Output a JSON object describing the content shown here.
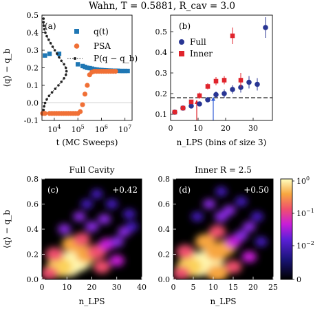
{
  "suptitle": "Wahn, T = 0.5881, R_cav = 3.0",
  "colors": {
    "blue": "#1f77b4",
    "orange": "#f07036",
    "full_blue": "#283593",
    "inner_red": "#e0242c",
    "dashed": "#222222",
    "arrow_red": "#e0242c",
    "arrow_blue": "#2f5bd6"
  },
  "chart_data": [
    {
      "panel": "(a)",
      "type": "scatter",
      "xscale": "log",
      "xlabel": "t (MC Sweeps)",
      "ylabel": "⟨q⟩ − q_b",
      "xlim": [
        3000,
        20000000
      ],
      "ylim": [
        -0.1,
        0.5
      ],
      "xticks": [
        {
          "value": 10000,
          "label": "10^4"
        },
        {
          "value": 100000,
          "label": "10^5"
        },
        {
          "value": 1000000,
          "label": "10^6"
        },
        {
          "value": 10000000,
          "label": "10^7"
        }
      ],
      "yticks": [
        -0.1,
        0.0,
        0.1,
        0.2,
        0.3,
        0.4,
        0.5
      ],
      "legend_position": "top-right",
      "series": [
        {
          "name": "q(t)",
          "marker": "square",
          "color": "#1f77b4",
          "x": [
            4000,
            6300,
            16000,
            100000,
            160000,
            200000,
            250000,
            320000,
            400000,
            500000,
            630000,
            800000,
            1000000,
            1300000,
            1600000,
            2000000,
            2500000,
            3200000,
            4000000,
            5000000,
            6300000,
            8000000,
            10000000,
            13000000
          ],
          "y": [
            0.27,
            0.28,
            0.28,
            0.22,
            0.21,
            0.205,
            0.2,
            0.198,
            0.195,
            0.192,
            0.19,
            0.188,
            0.187,
            0.186,
            0.185,
            0.184,
            0.184,
            0.183,
            0.183,
            0.183,
            0.182,
            0.182,
            0.182,
            0.182
          ]
        },
        {
          "name": "PSA",
          "marker": "circle",
          "color": "#f07036",
          "x": [
            3200,
            4000,
            6300,
            7900,
            10000,
            12500,
            15800,
            20000,
            25000,
            31600,
            39800,
            50100,
            63100,
            79400,
            100000,
            126000,
            158000,
            200000,
            251000,
            316000,
            398000,
            501000,
            631000,
            794000,
            1000000,
            1260000,
            1580000,
            2000000,
            2510000,
            3160000,
            3980000
          ],
          "y": [
            -0.06,
            -0.06,
            -0.06,
            -0.06,
            -0.06,
            -0.06,
            -0.06,
            -0.06,
            -0.06,
            -0.06,
            -0.06,
            -0.06,
            -0.06,
            -0.06,
            -0.06,
            -0.05,
            -0.01,
            0.05,
            0.1,
            0.16,
            0.175,
            0.18,
            0.18,
            0.18,
            0.18,
            0.18,
            0.18,
            0.18,
            0.18,
            0.18,
            0.18
          ]
        },
        {
          "name": "P(q − q_b)",
          "marker": "dot-line",
          "color": "#222222",
          "x": [
            3500,
            3500,
            3600,
            3800,
            4200,
            4800,
            5800,
            7000,
            8500,
            10500,
            13000,
            16000,
            20000,
            26000,
            31000,
            33000,
            31000,
            26000,
            20000,
            15000,
            11000,
            8000,
            6000,
            4800,
            4100,
            3700,
            3500
          ],
          "y": [
            0.48,
            0.46,
            0.44,
            0.42,
            0.4,
            0.38,
            0.36,
            0.34,
            0.32,
            0.3,
            0.28,
            0.26,
            0.24,
            0.22,
            0.2,
            0.18,
            0.16,
            0.14,
            0.12,
            0.1,
            0.08,
            0.06,
            0.04,
            0.02,
            0.0,
            -0.02,
            -0.04
          ]
        }
      ]
    },
    {
      "panel": "(b)",
      "type": "scatter",
      "xlabel": "n_LPS (bins of size 3)",
      "xlim": [
        0,
        37
      ],
      "ylim": [
        0.07,
        0.58
      ],
      "xticks": [
        0,
        10,
        20,
        30
      ],
      "yticks": [
        0.1,
        0.2,
        0.3,
        0.4,
        0.5
      ],
      "legend_position": "top-left",
      "hline": 0.18,
      "arrows": [
        {
          "x": 9.5,
          "color": "red"
        },
        {
          "x": 15.5,
          "color": "blue"
        }
      ],
      "series": [
        {
          "name": "Full",
          "marker": "circle",
          "color": "#283593",
          "x": [
            1.5,
            4.5,
            7.5,
            10.5,
            13.5,
            16.5,
            19.5,
            22.5,
            25.5,
            28.5,
            31.5,
            34.5
          ],
          "y": [
            0.11,
            0.13,
            0.14,
            0.15,
            0.17,
            0.195,
            0.2,
            0.22,
            0.23,
            0.255,
            0.245,
            0.52
          ],
          "yerr": [
            0.008,
            0.008,
            0.01,
            0.01,
            0.012,
            0.015,
            0.02,
            0.02,
            0.025,
            0.03,
            0.03,
            0.05
          ]
        },
        {
          "name": "Inner",
          "marker": "square",
          "color": "#e0242c",
          "x": [
            1.5,
            4.5,
            7.5,
            10.5,
            13.5,
            16.5,
            19.5,
            22.5,
            25.5
          ],
          "y": [
            0.11,
            0.13,
            0.16,
            0.19,
            0.235,
            0.26,
            0.265,
            0.48,
            0.265
          ],
          "yerr": [
            0.008,
            0.01,
            0.01,
            0.015,
            0.015,
            0.02,
            0.02,
            0.04,
            0.035
          ]
        }
      ]
    },
    {
      "panel": "(c)",
      "type": "heatmap",
      "title": "Full Cavity",
      "annotation": "+0.42",
      "xlabel": "n_LPS",
      "ylabel": "⟨q⟩ − q_b",
      "xlim": [
        0,
        40
      ],
      "ylim": [
        0,
        0.8
      ],
      "xticks": [
        0,
        10,
        20,
        30,
        40
      ],
      "yticks": [
        0.0,
        0.2,
        0.4,
        0.6,
        0.8
      ],
      "blobs": [
        {
          "x": 10,
          "y": 0.12,
          "w": 1.0
        },
        {
          "x": 14,
          "y": 0.15,
          "w": 0.85
        },
        {
          "x": 7,
          "y": 0.1,
          "w": 0.7
        },
        {
          "x": 18,
          "y": 0.2,
          "w": 0.55
        },
        {
          "x": 22,
          "y": 0.22,
          "w": 0.4
        },
        {
          "x": 12,
          "y": 0.28,
          "w": 0.45
        },
        {
          "x": 16,
          "y": 0.32,
          "w": 0.3
        },
        {
          "x": 26,
          "y": 0.28,
          "w": 0.25
        },
        {
          "x": 30,
          "y": 0.3,
          "w": 0.15
        },
        {
          "x": 33,
          "y": 0.38,
          "w": 0.12
        },
        {
          "x": 5,
          "y": 0.2,
          "w": 0.35
        },
        {
          "x": 20,
          "y": 0.42,
          "w": 0.15
        },
        {
          "x": 15,
          "y": 0.5,
          "w": 0.1
        },
        {
          "x": 25,
          "y": 0.48,
          "w": 0.12
        },
        {
          "x": 35,
          "y": 0.52,
          "w": 0.08
        },
        {
          "x": 28,
          "y": 0.6,
          "w": 0.07
        },
        {
          "x": 18,
          "y": 0.6,
          "w": 0.06
        },
        {
          "x": 36,
          "y": 0.42,
          "w": 0.08
        },
        {
          "x": 3,
          "y": 0.05,
          "w": 0.3
        },
        {
          "x": 24,
          "y": 0.1,
          "w": 0.3
        },
        {
          "x": 30,
          "y": 0.15,
          "w": 0.2
        },
        {
          "x": 22,
          "y": 0.68,
          "w": 0.05
        },
        {
          "x": 9,
          "y": 0.4,
          "w": 0.12
        }
      ]
    },
    {
      "panel": "(d)",
      "type": "heatmap",
      "title": "Inner R = 2.5",
      "annotation": "+0.50",
      "xlabel": "n_LPS",
      "xlim": [
        0,
        25
      ],
      "ylim": [
        0,
        0.8
      ],
      "xticks": [
        0,
        5,
        10,
        15,
        20,
        25
      ],
      "yticks": [
        0.0,
        0.2,
        0.4,
        0.6,
        0.8
      ],
      "colorbar": {
        "scale": "log",
        "ticks": [
          {
            "value": 1,
            "label": "10^0"
          },
          {
            "value": 0.1,
            "label": "10^-1"
          },
          {
            "value": 0.01,
            "label": "10^-2"
          },
          {
            "value": 0,
            "label": "0"
          }
        ]
      },
      "blobs": [
        {
          "x": 6,
          "y": 0.12,
          "w": 1.0
        },
        {
          "x": 9,
          "y": 0.15,
          "w": 0.85
        },
        {
          "x": 4,
          "y": 0.1,
          "w": 0.7
        },
        {
          "x": 11,
          "y": 0.22,
          "w": 0.6
        },
        {
          "x": 13,
          "y": 0.25,
          "w": 0.45
        },
        {
          "x": 8,
          "y": 0.3,
          "w": 0.45
        },
        {
          "x": 11,
          "y": 0.38,
          "w": 0.3
        },
        {
          "x": 15,
          "y": 0.3,
          "w": 0.25
        },
        {
          "x": 17,
          "y": 0.35,
          "w": 0.15
        },
        {
          "x": 19,
          "y": 0.42,
          "w": 0.12
        },
        {
          "x": 3,
          "y": 0.22,
          "w": 0.35
        },
        {
          "x": 12,
          "y": 0.5,
          "w": 0.15
        },
        {
          "x": 9,
          "y": 0.6,
          "w": 0.1
        },
        {
          "x": 14,
          "y": 0.55,
          "w": 0.12
        },
        {
          "x": 21,
          "y": 0.5,
          "w": 0.08
        },
        {
          "x": 17,
          "y": 0.62,
          "w": 0.07
        },
        {
          "x": 6,
          "y": 0.5,
          "w": 0.06
        },
        {
          "x": 22,
          "y": 0.3,
          "w": 0.08
        },
        {
          "x": 2,
          "y": 0.05,
          "w": 0.3
        },
        {
          "x": 15,
          "y": 0.1,
          "w": 0.3
        },
        {
          "x": 19,
          "y": 0.18,
          "w": 0.2
        },
        {
          "x": 12,
          "y": 0.7,
          "w": 0.05
        },
        {
          "x": 11,
          "y": 0.05,
          "w": 0.5
        }
      ]
    }
  ]
}
